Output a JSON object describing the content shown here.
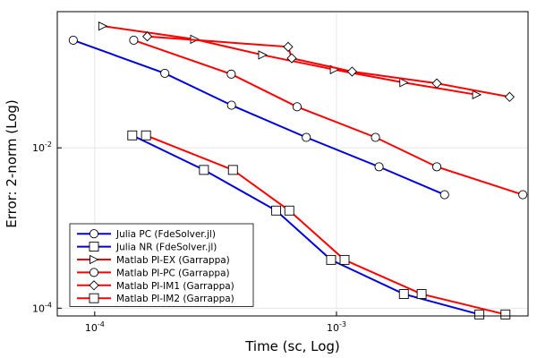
{
  "chart_data": {
    "type": "line",
    "xscale": "log",
    "yscale": "log",
    "xlabel": "Time (sc, Log)",
    "ylabel": "Error: 2-norm (Log)",
    "xlim": [
      7e-05,
      0.0062
    ],
    "ylim": [
      8e-05,
      0.5
    ],
    "grid": true,
    "legend_position": "bottom-left",
    "xticks": [
      {
        "value": 0.0001,
        "base": "10",
        "exp": "-4"
      },
      {
        "value": 0.001,
        "base": "10",
        "exp": "-3"
      }
    ],
    "yticks": [
      {
        "value": 0.0001,
        "base": "10",
        "exp": "-4"
      },
      {
        "value": 0.01,
        "base": "10",
        "exp": "-2"
      }
    ],
    "series": [
      {
        "name": "Julia PC (FdeSolver.jl)",
        "color": "#0000dd",
        "marker": "circle",
        "x": [
          8.15e-05,
          0.000195,
          0.000368,
          0.00075,
          0.0015,
          0.0028
        ],
        "y": [
          0.22,
          0.085,
          0.034,
          0.0135,
          0.0058,
          0.0026
        ]
      },
      {
        "name": "Julia NR (FdeSolver.jl)",
        "color": "#0000dd",
        "marker": "square",
        "x": [
          0.000143,
          0.000283,
          0.000563,
          0.00095,
          0.0019,
          0.0039
        ],
        "y": [
          0.0143,
          0.0053,
          0.00165,
          0.0004,
          0.00015,
          8.35e-05
        ]
      },
      {
        "name": "Matlab PI-EX (Garrappa)",
        "color": "#ff0000",
        "marker": "triangle-right",
        "x": [
          0.000108,
          0.000259,
          0.000495,
          0.00098,
          0.0019,
          0.0038
        ],
        "y": [
          0.33,
          0.226,
          0.144,
          0.0945,
          0.0652,
          0.046
        ]
      },
      {
        "name": "Matlab PI-PC (Garrappa)",
        "color": "#ff0000",
        "marker": "circle",
        "x": [
          0.000145,
          0.000367,
          0.000687,
          0.00145,
          0.0026,
          0.0059
        ],
        "y": [
          0.22,
          0.083,
          0.0325,
          0.0135,
          0.0058,
          0.0026
        ]
      },
      {
        "name": "Matlab PI-IM1 (Garrappa)",
        "color": "#ff0000",
        "marker": "diamond",
        "x": [
          0.000165,
          0.000631,
          0.000653,
          0.00116,
          0.0026,
          0.0052
        ],
        "y": [
          0.245,
          0.182,
          0.131,
          0.0894,
          0.0637,
          0.0432
        ]
      },
      {
        "name": "Matlab PI-IM2 (Garrappa)",
        "color": "#ff0000",
        "marker": "square",
        "x": [
          0.000163,
          0.000373,
          0.000638,
          0.00108,
          0.00225,
          0.005
        ],
        "y": [
          0.0143,
          0.0053,
          0.00165,
          0.0004,
          0.00015,
          8.35e-05
        ]
      }
    ]
  }
}
